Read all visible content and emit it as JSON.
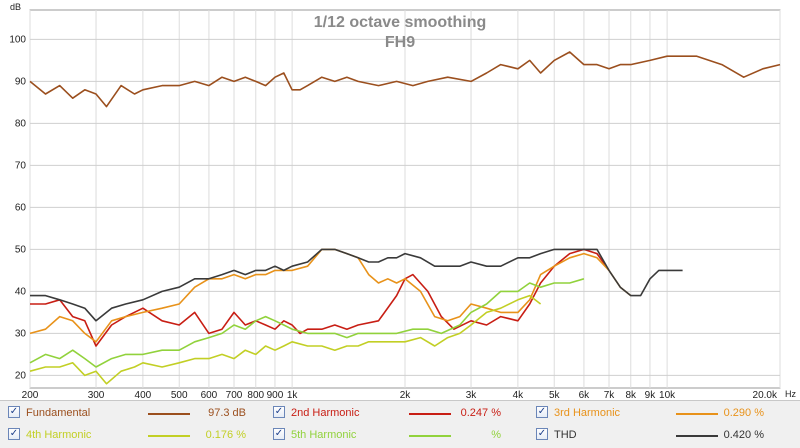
{
  "chart_data": {
    "type": "line",
    "title": "1/12 octave smoothing",
    "subtitle": "FH9",
    "y_unit": "dB",
    "x_unit": "Hz",
    "x_scale": "log",
    "xlim": [
      200,
      20000
    ],
    "ylim": [
      17,
      107
    ],
    "y_ticks": [
      20,
      30,
      40,
      50,
      60,
      70,
      80,
      90,
      100
    ],
    "x_ticks": [
      {
        "value": 200,
        "label": "200"
      },
      {
        "value": 300,
        "label": "300"
      },
      {
        "value": 400,
        "label": "400"
      },
      {
        "value": 500,
        "label": "500"
      },
      {
        "value": 600,
        "label": "600"
      },
      {
        "value": 700,
        "label": "700"
      },
      {
        "value": 800,
        "label": "800"
      },
      {
        "value": 900,
        "label": "900"
      },
      {
        "value": 1000,
        "label": "1k"
      },
      {
        "value": 2000,
        "label": "2k"
      },
      {
        "value": 3000,
        "label": "3k"
      },
      {
        "value": 4000,
        "label": "4k"
      },
      {
        "value": 5000,
        "label": "5k"
      },
      {
        "value": 6000,
        "label": "6k"
      },
      {
        "value": 7000,
        "label": "7k"
      },
      {
        "value": 8000,
        "label": "8k"
      },
      {
        "value": 9000,
        "label": "9k"
      },
      {
        "value": 10000,
        "label": "10k"
      },
      {
        "value": 20000,
        "label": "20.0k"
      }
    ],
    "grid": true,
    "series": [
      {
        "name": "Fundamental",
        "color": "#9b4f1e",
        "x": [
          200,
          220,
          240,
          260,
          280,
          300,
          320,
          350,
          380,
          400,
          450,
          500,
          550,
          600,
          650,
          700,
          750,
          800,
          850,
          900,
          950,
          1000,
          1050,
          1100,
          1200,
          1300,
          1400,
          1500,
          1700,
          1900,
          2100,
          2300,
          2600,
          3000,
          3300,
          3600,
          4000,
          4300,
          4600,
          5000,
          5500,
          6000,
          6500,
          7000,
          7500,
          8000,
          9000,
          10000,
          11000,
          12000,
          14000,
          16000,
          18000,
          20000
        ],
        "y": [
          90,
          87,
          89,
          86,
          88,
          87,
          84,
          89,
          87,
          88,
          89,
          89,
          90,
          89,
          91,
          90,
          91,
          90,
          89,
          91,
          92,
          88,
          88,
          89,
          91,
          90,
          91,
          90,
          89,
          90,
          89,
          90,
          91,
          90,
          92,
          94,
          93,
          95,
          92,
          95,
          97,
          94,
          94,
          93,
          94,
          94,
          95,
          96,
          96,
          96,
          94,
          91,
          93,
          94
        ]
      },
      {
        "name": "2nd Harmonic",
        "color": "#c81e14",
        "x": [
          200,
          220,
          240,
          260,
          280,
          300,
          330,
          360,
          400,
          450,
          500,
          550,
          600,
          650,
          700,
          750,
          800,
          850,
          900,
          950,
          1000,
          1050,
          1100,
          1200,
          1300,
          1400,
          1500,
          1700,
          1900,
          2000,
          2100,
          2300,
          2500,
          2700,
          3000,
          3300,
          3600,
          4000,
          4300,
          4600,
          5000,
          5500,
          6000,
          6500,
          7000
        ],
        "y": [
          37,
          37,
          38,
          34,
          33,
          27,
          32,
          34,
          36,
          33,
          32,
          35,
          30,
          31,
          35,
          32,
          33,
          32,
          31,
          33,
          32,
          30,
          31,
          31,
          32,
          31,
          32,
          33,
          39,
          43,
          44,
          40,
          34,
          31,
          33,
          32,
          34,
          33,
          37,
          42,
          46,
          49,
          50,
          49,
          45
        ]
      },
      {
        "name": "3rd Harmonic",
        "color": "#e8921a",
        "x": [
          200,
          220,
          240,
          260,
          280,
          300,
          330,
          360,
          400,
          450,
          500,
          550,
          600,
          650,
          700,
          750,
          800,
          850,
          900,
          950,
          1000,
          1100,
          1200,
          1300,
          1400,
          1500,
          1600,
          1700,
          1800,
          1900,
          2000,
          2200,
          2400,
          2600,
          2800,
          3000,
          3300,
          3600,
          4000,
          4300,
          4600,
          5000,
          5500,
          6000,
          6500,
          7000,
          7500,
          8000
        ],
        "y": [
          30,
          31,
          34,
          33,
          30,
          28,
          33,
          34,
          35,
          36,
          37,
          41,
          43,
          43,
          44,
          43,
          44,
          44,
          45,
          45,
          45,
          46,
          50,
          50,
          49,
          48,
          44,
          42,
          43,
          42,
          43,
          40,
          34,
          33,
          34,
          37,
          36,
          35,
          35,
          38,
          44,
          46,
          48,
          49,
          48,
          45,
          41,
          39
        ]
      },
      {
        "name": "4th Harmonic",
        "color": "#c2cf25",
        "x": [
          200,
          220,
          240,
          260,
          280,
          300,
          320,
          350,
          380,
          400,
          450,
          500,
          550,
          600,
          650,
          700,
          750,
          800,
          850,
          900,
          950,
          1000,
          1100,
          1200,
          1300,
          1400,
          1500,
          1600,
          1800,
          2000,
          2200,
          2400,
          2600,
          2800,
          3000,
          3300,
          3600,
          4000,
          4300,
          4600
        ],
        "y": [
          21,
          22,
          22,
          23,
          20,
          21,
          18,
          21,
          22,
          23,
          22,
          23,
          24,
          24,
          25,
          24,
          26,
          25,
          27,
          26,
          27,
          28,
          27,
          27,
          26,
          27,
          27,
          28,
          28,
          28,
          29,
          27,
          29,
          30,
          32,
          35,
          36,
          38,
          39,
          37
        ]
      },
      {
        "name": "5th Harmonic",
        "color": "#91d23c",
        "x": [
          200,
          220,
          240,
          260,
          280,
          300,
          330,
          360,
          400,
          450,
          500,
          550,
          600,
          650,
          700,
          750,
          800,
          850,
          900,
          950,
          1000,
          1100,
          1200,
          1300,
          1400,
          1500,
          1700,
          1900,
          2100,
          2300,
          2500,
          2800,
          3000,
          3300,
          3600,
          4000,
          4300,
          4600,
          5000,
          5500,
          6000
        ],
        "y": [
          23,
          25,
          24,
          26,
          24,
          22,
          24,
          25,
          25,
          26,
          26,
          28,
          29,
          30,
          32,
          31,
          33,
          34,
          33,
          32,
          31,
          30,
          30,
          30,
          29,
          30,
          30,
          30,
          31,
          31,
          30,
          32,
          35,
          37,
          40,
          40,
          42,
          41,
          42,
          42,
          43
        ]
      },
      {
        "name": "THD",
        "color": "#3a3a3a",
        "x": [
          200,
          220,
          240,
          260,
          280,
          300,
          330,
          360,
          400,
          450,
          500,
          550,
          600,
          650,
          700,
          750,
          800,
          850,
          900,
          950,
          1000,
          1100,
          1200,
          1300,
          1400,
          1500,
          1600,
          1700,
          1800,
          1900,
          2000,
          2200,
          2400,
          2600,
          2800,
          3000,
          3300,
          3600,
          4000,
          4300,
          4600,
          5000,
          5500,
          6000,
          6500,
          7000,
          7500,
          8000,
          8500,
          9000,
          9500,
          10000,
          10500,
          11000
        ],
        "y": [
          39,
          39,
          38,
          37,
          36,
          33,
          36,
          37,
          38,
          40,
          41,
          43,
          43,
          44,
          45,
          44,
          45,
          45,
          46,
          45,
          46,
          47,
          50,
          50,
          49,
          48,
          47,
          47,
          48,
          48,
          49,
          48,
          46,
          46,
          46,
          47,
          46,
          46,
          48,
          48,
          49,
          50,
          50,
          50,
          50,
          45,
          41,
          39,
          39,
          43,
          45,
          45,
          45,
          45
        ]
      }
    ]
  },
  "legend": {
    "items": [
      {
        "label": "Fundamental",
        "value": "97.3 dB",
        "checked": "✓"
      },
      {
        "label": "2nd Harmonic",
        "value": "0.247 %",
        "checked": "✓"
      },
      {
        "label": "3rd Harmonic",
        "value": "0.290 %",
        "checked": "✓"
      },
      {
        "label": "4th Harmonic",
        "value": "0.176 %",
        "checked": "✓"
      },
      {
        "label": "5th Harmonic",
        "value": "%",
        "checked": "✓"
      },
      {
        "label": "THD",
        "value": "0.420 %",
        "checked": "✓"
      }
    ]
  }
}
